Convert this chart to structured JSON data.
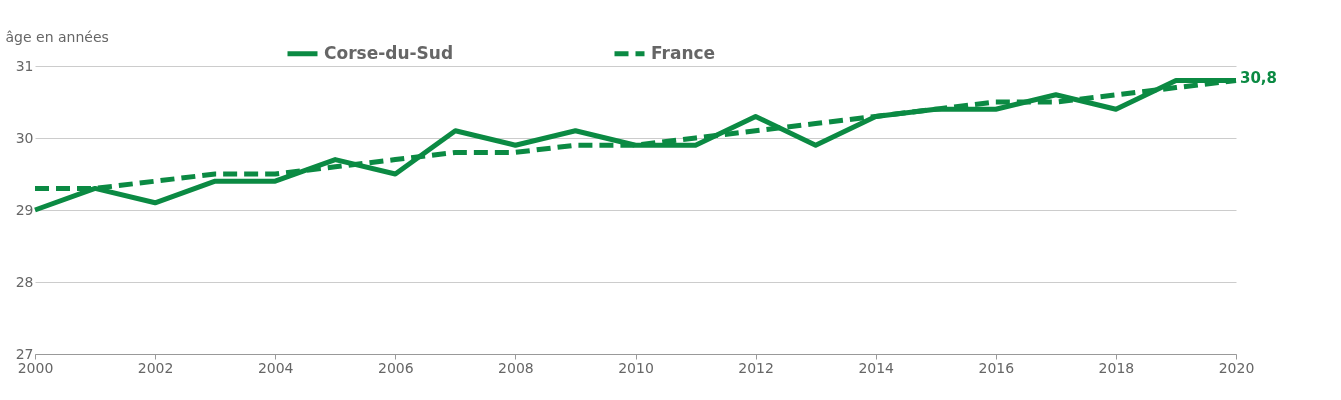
{
  "chart_data": {
    "type": "line",
    "ylabel": "âge en années",
    "x": [
      2000,
      2001,
      2002,
      2003,
      2004,
      2005,
      2006,
      2007,
      2008,
      2009,
      2010,
      2011,
      2012,
      2013,
      2014,
      2015,
      2016,
      2017,
      2018,
      2019,
      2020
    ],
    "series": [
      {
        "name": "Corse-du-Sud",
        "color": "#0b8a43",
        "line_style": "solid",
        "values": [
          29.0,
          29.3,
          29.1,
          29.4,
          29.4,
          29.7,
          29.5,
          30.1,
          29.9,
          30.1,
          29.9,
          29.9,
          30.3,
          29.9,
          30.3,
          30.4,
          30.4,
          30.6,
          30.4,
          30.8,
          30.8
        ]
      },
      {
        "name": "France",
        "color": "#0b8a43",
        "line_style": "dashed",
        "values": [
          29.3,
          29.3,
          29.4,
          29.5,
          29.5,
          29.6,
          29.7,
          29.8,
          29.8,
          29.9,
          29.9,
          30.0,
          30.1,
          30.2,
          30.3,
          30.4,
          30.5,
          30.5,
          30.6,
          30.7,
          30.8
        ]
      }
    ],
    "xlim": [
      2000,
      2020
    ],
    "xticks": [
      2000,
      2002,
      2004,
      2006,
      2008,
      2010,
      2012,
      2014,
      2016,
      2018,
      2020
    ],
    "ylim": [
      27,
      31
    ],
    "yticks": [
      27,
      28,
      29,
      30,
      31
    ],
    "grid": "y",
    "legend": "top",
    "marker": "none",
    "annotations": [
      {
        "text": "30,8",
        "x": 2020,
        "y": 30.8
      }
    ]
  }
}
